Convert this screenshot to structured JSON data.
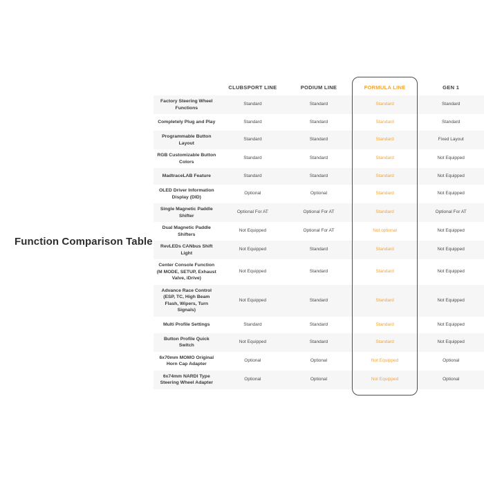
{
  "page": {
    "title": "Function Comparison Table"
  },
  "colors": {
    "accent_orange": "#F1A43B",
    "stripe_gray": "#F6F6F6",
    "outline_dark": "#4D4D4D"
  },
  "table": {
    "feature_column_header": "",
    "columns": [
      {
        "key": "clubsport",
        "label": "CLUBSPORT LINE",
        "highlight": false
      },
      {
        "key": "podium",
        "label": "PODIUM LINE",
        "highlight": false
      },
      {
        "key": "formula",
        "label": "FORMULA LINE",
        "highlight": true
      },
      {
        "key": "gen1",
        "label": "GEN 1",
        "highlight": false
      }
    ],
    "rows": [
      {
        "feature": "Factory Steering Wheel Functions",
        "clubsport": "Standard",
        "podium": "Standard",
        "formula": "Standard",
        "gen1": "Standard"
      },
      {
        "feature": "Completely Plug and Play",
        "clubsport": "Standard",
        "podium": "Standard",
        "formula": "Standard",
        "gen1": "Standard"
      },
      {
        "feature": "Programmable Button Layout",
        "clubsport": "Standard",
        "podium": "Standard",
        "formula": "Standard",
        "gen1": "Fixed Layout"
      },
      {
        "feature": "RGB Customizable Button Colors",
        "clubsport": "Standard",
        "podium": "Standard",
        "formula": "Standard",
        "gen1": "Not Equipped"
      },
      {
        "feature": "MadtraceLAB Feature",
        "clubsport": "Standard",
        "podium": "Standard",
        "formula": "Standard",
        "gen1": "Not Equipped"
      },
      {
        "feature": "OLED Driver Information Display (DID)",
        "clubsport": "Optional",
        "podium": "Optional",
        "formula": "Standard",
        "gen1": "Not Equipped"
      },
      {
        "feature": "Single Magnetic Paddle Shifter",
        "clubsport": "Optional For AT",
        "podium": "Optional For AT",
        "formula": "Standard",
        "gen1": "Optional For AT"
      },
      {
        "feature": "Dual Magnetic Paddle Shifters",
        "clubsport": "Not Equipped",
        "podium": "Optional For AT",
        "formula": "Not optional",
        "gen1": "Not Equipped"
      },
      {
        "feature": "RevLEDs CANbus Shift Light",
        "clubsport": "Not Equipped",
        "podium": "Standard",
        "formula": "Standard",
        "gen1": "Not Equipped"
      },
      {
        "feature": "Center Console Function (M MODE, SETUP, Exhaust Valve, iDrive)",
        "clubsport": "Not Equipped",
        "podium": "Standard",
        "formula": "Standard",
        "gen1": "Not Equipped"
      },
      {
        "feature": "Advance Race Control (ESP, TC, High Beam Flash, Wipers, Turn Signals)",
        "clubsport": "Not Equipped",
        "podium": "Standard",
        "formula": "Standard",
        "gen1": "Not Equipped"
      },
      {
        "feature": "Multi Profile Settings",
        "clubsport": "Standard",
        "podium": "Standard",
        "formula": "Standard",
        "gen1": "Not Equipped"
      },
      {
        "feature": "Button Profile Quick Switch",
        "clubsport": "Not Equipped",
        "podium": "Standard",
        "formula": "Standard",
        "gen1": "Not Equipped"
      },
      {
        "feature": "6x70mm MOMO Original Horn Cap Adapter",
        "clubsport": "Optional",
        "podium": "Optional",
        "formula": "Not Equipped",
        "gen1": "Optional"
      },
      {
        "feature": "6x74mm NARDI Type Steering Wheel Adapter",
        "clubsport": "Optional",
        "podium": "Optional",
        "formula": "Not Equipped",
        "gen1": "Optional"
      }
    ]
  }
}
